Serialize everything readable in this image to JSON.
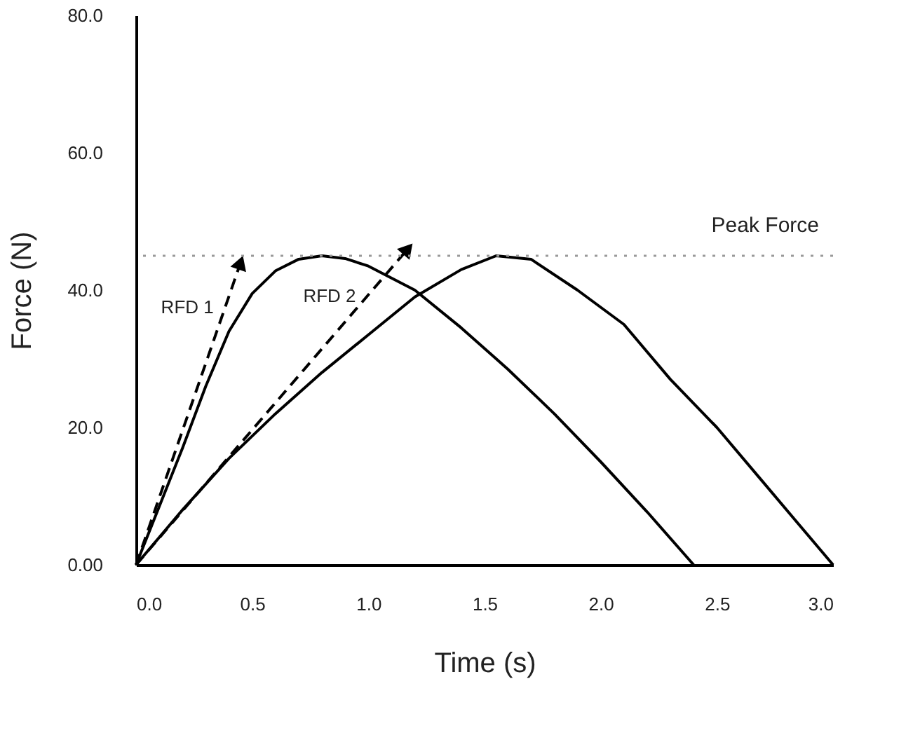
{
  "chart_data": {
    "type": "line",
    "xlabel": "Time (s)",
    "ylabel": "Force (N)",
    "xlim": [
      0,
      3.0
    ],
    "ylim": [
      0,
      80
    ],
    "xticks": [
      {
        "value": 0,
        "label": "0.0"
      },
      {
        "value": 0.5,
        "label": "0.5"
      },
      {
        "value": 1,
        "label": "1.0"
      },
      {
        "value": 1.5,
        "label": "1.5"
      },
      {
        "value": 2,
        "label": "2.0"
      },
      {
        "value": 2.5,
        "label": "2.5"
      },
      {
        "value": 3,
        "label": "3.0"
      }
    ],
    "yticks": [
      {
        "value": 0,
        "label": "0.00"
      },
      {
        "value": 20,
        "label": "20.0"
      },
      {
        "value": 40,
        "label": "40.0"
      },
      {
        "value": 60,
        "label": "60.0"
      },
      {
        "value": 80,
        "label": "80.0"
      }
    ],
    "grid": false,
    "marker": "none",
    "series": [
      {
        "color": "#000000",
        "line_style": "solid",
        "x": [
          0,
          0.1,
          0.2,
          0.3,
          0.4,
          0.5,
          0.6,
          0.7,
          0.8,
          0.9,
          1.0,
          1.2,
          1.4,
          1.6,
          1.8,
          2.0,
          2.2,
          2.4
        ],
        "values": [
          0,
          8.5,
          17,
          26,
          34,
          39.5,
          42.8,
          44.5,
          45,
          44.6,
          43.5,
          40,
          34.5,
          28.5,
          22,
          15,
          7.7,
          0
        ]
      },
      {
        "color": "#000000",
        "line_style": "solid",
        "x": [
          0,
          0.2,
          0.4,
          0.6,
          0.8,
          1.0,
          1.2,
          1.4,
          1.55,
          1.7,
          1.9,
          2.1,
          2.3,
          2.5,
          2.7,
          2.85,
          3.0
        ],
        "values": [
          0,
          8,
          15.5,
          22,
          28,
          33.5,
          39,
          43,
          45,
          44.5,
          40,
          35,
          27,
          20,
          12,
          6,
          0
        ]
      },
      {
        "name": "RFD 1",
        "color": "#000000",
        "line_style": "dashed",
        "marker": "triangle",
        "x": [
          0,
          0.45
        ],
        "values": [
          0,
          44
        ]
      },
      {
        "name": "RFD 2",
        "color": "#000000",
        "line_style": "dashed",
        "marker": "triangle",
        "x": [
          0,
          1.17
        ],
        "values": [
          0,
          46
        ]
      }
    ],
    "ref_lines": [
      {
        "axis": "y",
        "value": 45,
        "label": "Peak Force",
        "color": "#999999",
        "line_style": "dotted"
      }
    ]
  }
}
